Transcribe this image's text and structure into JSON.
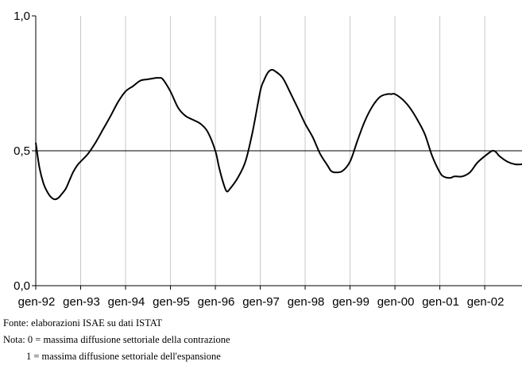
{
  "chart_data": {
    "type": "line",
    "title": "",
    "xlabel": "",
    "ylabel": "",
    "ylim": [
      0,
      1
    ],
    "yticks": [
      {
        "value": 0,
        "label": "0,0"
      },
      {
        "value": 0.5,
        "label": "0,5"
      },
      {
        "value": 1,
        "label": "1,0"
      }
    ],
    "xlim": [
      1992.0,
      2002.83
    ],
    "xticks": [
      {
        "value": 1992,
        "label": "gen-92"
      },
      {
        "value": 1993,
        "label": "gen-93"
      },
      {
        "value": 1994,
        "label": "gen-94"
      },
      {
        "value": 1995,
        "label": "gen-95"
      },
      {
        "value": 1996,
        "label": "gen-96"
      },
      {
        "value": 1997,
        "label": "gen-97"
      },
      {
        "value": 1998,
        "label": "gen-98"
      },
      {
        "value": 1999,
        "label": "gen-99"
      },
      {
        "value": 2000,
        "label": "gen-00"
      },
      {
        "value": 2001,
        "label": "gen-01"
      },
      {
        "value": 2002,
        "label": "gen-02"
      }
    ],
    "reference_line": 0.5,
    "grid": "vertical",
    "series": [
      {
        "color": "#000000",
        "x": [
          1992.0,
          1992.08,
          1992.17,
          1992.25,
          1992.33,
          1992.42,
          1992.5,
          1992.58,
          1992.67,
          1992.75,
          1992.83,
          1992.92,
          1993.0,
          1993.17,
          1993.33,
          1993.5,
          1993.67,
          1993.83,
          1994.0,
          1994.17,
          1994.33,
          1994.5,
          1994.67,
          1994.75,
          1994.83,
          1995.0,
          1995.17,
          1995.33,
          1995.5,
          1995.67,
          1995.83,
          1996.0,
          1996.08,
          1996.17,
          1996.25,
          1996.33,
          1996.5,
          1996.67,
          1996.83,
          1997.0,
          1997.08,
          1997.17,
          1997.25,
          1997.33,
          1997.5,
          1997.67,
          1997.83,
          1998.0,
          1998.17,
          1998.33,
          1998.5,
          1998.58,
          1998.67,
          1998.83,
          1999.0,
          1999.17,
          1999.33,
          1999.5,
          1999.67,
          1999.83,
          1999.92,
          2000.0,
          2000.17,
          2000.33,
          2000.5,
          2000.67,
          2000.83,
          2001.0,
          2001.08,
          2001.17,
          2001.25,
          2001.33,
          2001.5,
          2001.67,
          2001.83,
          2002.0,
          2002.17,
          2002.25,
          2002.33,
          2002.5,
          2002.67,
          2002.83
        ],
        "values": [
          0.53,
          0.44,
          0.38,
          0.35,
          0.33,
          0.32,
          0.325,
          0.34,
          0.36,
          0.39,
          0.42,
          0.445,
          0.46,
          0.49,
          0.53,
          0.58,
          0.63,
          0.68,
          0.72,
          0.74,
          0.76,
          0.765,
          0.77,
          0.77,
          0.765,
          0.72,
          0.66,
          0.63,
          0.615,
          0.6,
          0.57,
          0.5,
          0.44,
          0.385,
          0.35,
          0.36,
          0.4,
          0.46,
          0.57,
          0.72,
          0.76,
          0.79,
          0.8,
          0.795,
          0.77,
          0.715,
          0.66,
          0.6,
          0.55,
          0.49,
          0.445,
          0.425,
          0.42,
          0.425,
          0.46,
          0.54,
          0.61,
          0.665,
          0.7,
          0.71,
          0.71,
          0.71,
          0.69,
          0.66,
          0.615,
          0.56,
          0.48,
          0.42,
          0.405,
          0.4,
          0.4,
          0.405,
          0.405,
          0.42,
          0.455,
          0.48,
          0.5,
          0.495,
          0.48,
          0.46,
          0.45,
          0.45
        ]
      }
    ]
  },
  "notes": {
    "source": "Fonte: elaborazioni ISAE su dati ISTAT",
    "note_line1": "Nota: 0 = massima diffusione settoriale della contrazione",
    "note_line2": "1 = massima diffusione settoriale dell'espansione"
  }
}
